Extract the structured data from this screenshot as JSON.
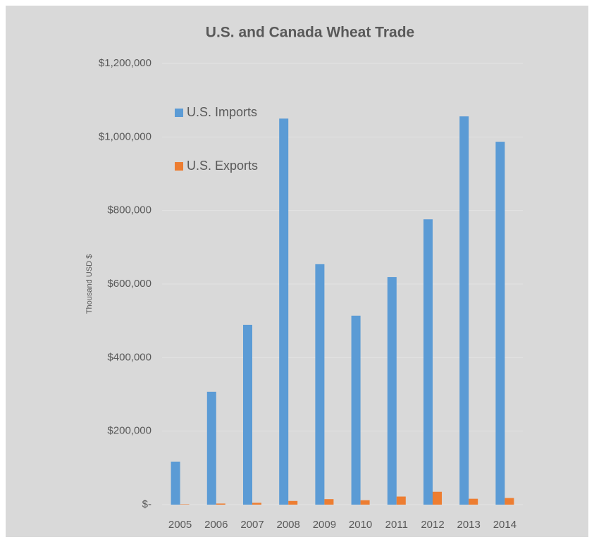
{
  "chart_data": {
    "type": "bar",
    "title": "U.S. and Canada Wheat Trade",
    "y_axis_label": "Thousand USD $",
    "categories": [
      "2005",
      "2006",
      "2007",
      "2008",
      "2009",
      "2010",
      "2011",
      "2012",
      "2013",
      "2014"
    ],
    "series": [
      {
        "name": "U.S. Imports",
        "color": "#5b9bd5",
        "values": [
          117000,
          307000,
          489000,
          1050000,
          654000,
          514000,
          619000,
          776000,
          1056000,
          987000
        ]
      },
      {
        "name": "U.S. Exports",
        "color": "#ed7d31",
        "values": [
          1000,
          3000,
          5000,
          10000,
          15000,
          12000,
          22000,
          35000,
          16000,
          18000
        ]
      }
    ],
    "ylim": [
      0,
      1200000
    ],
    "yticks": [
      {
        "value": 0,
        "label": "$-"
      },
      {
        "value": 200000,
        "label": "$200,000"
      },
      {
        "value": 400000,
        "label": "$400,000"
      },
      {
        "value": 600000,
        "label": "$600,000"
      },
      {
        "value": 800000,
        "label": "$800,000"
      },
      {
        "value": 1000000,
        "label": "$1,000,000"
      },
      {
        "value": 1200000,
        "label": "$1,200,000"
      }
    ],
    "grid": true,
    "legend": "top-left"
  }
}
